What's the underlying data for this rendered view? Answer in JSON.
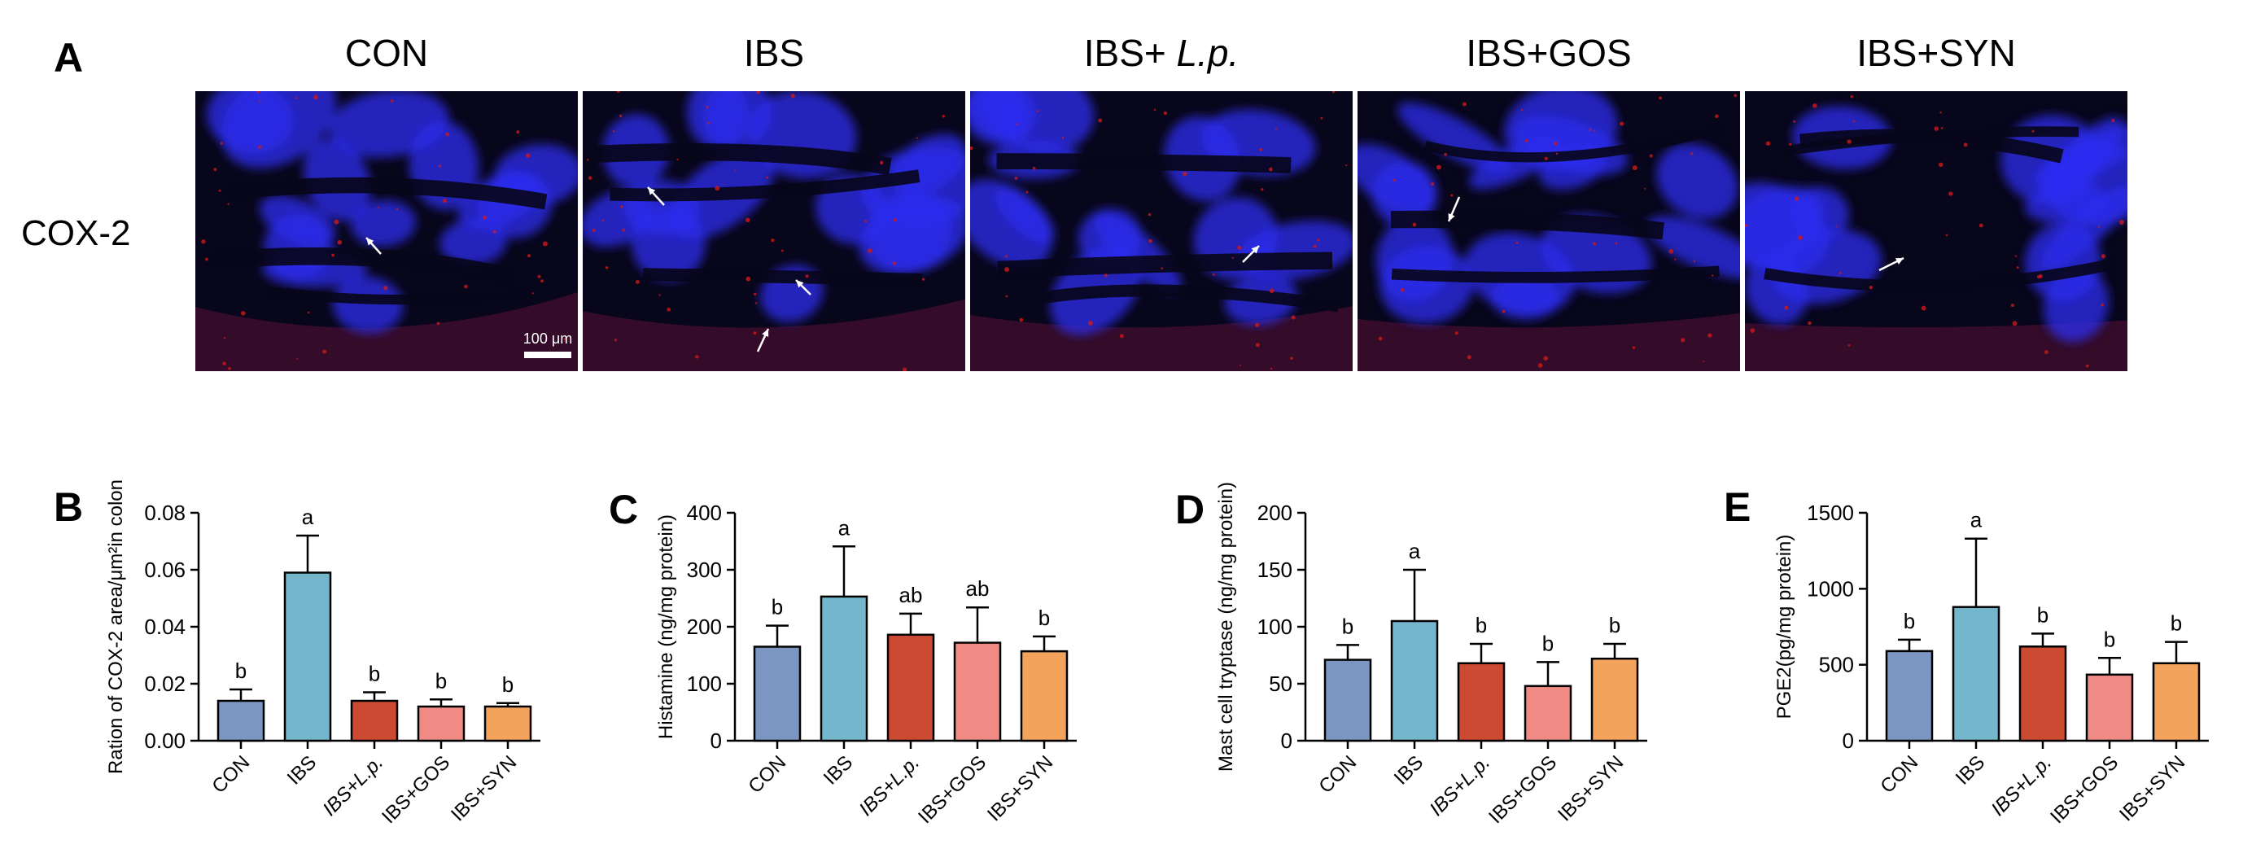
{
  "panel_a": {
    "letter": "A",
    "row_label": "COX-2",
    "groups": [
      {
        "header": "CON",
        "header_main": "CON",
        "header_italic": "",
        "arrows": 1,
        "scale_bar": "100 μm"
      },
      {
        "header": "IBS",
        "header_main": "IBS",
        "header_italic": "",
        "arrows": 3,
        "scale_bar": ""
      },
      {
        "header": "IBS+ L.p.",
        "header_main": "IBS+ ",
        "header_italic": "L.p.",
        "arrows": 1,
        "scale_bar": ""
      },
      {
        "header": "IBS+GOS",
        "header_main": "IBS+GOS",
        "header_italic": "",
        "arrows": 1,
        "scale_bar": ""
      },
      {
        "header": "IBS+SYN",
        "header_main": "IBS+SYN",
        "header_italic": "",
        "arrows": 1,
        "scale_bar": ""
      }
    ],
    "stain_colors": {
      "nuclei": "#2b2cf0",
      "cox2": "#d01818",
      "background": "#08061a"
    }
  },
  "chart_data": [
    {
      "panel": "B",
      "type": "bar",
      "categories": [
        "CON",
        "IBS",
        "IBS+L.p.",
        "IBS+GOS",
        "IBS+SYN"
      ],
      "category_italic": [
        false,
        false,
        true,
        false,
        false
      ],
      "values": [
        0.014,
        0.059,
        0.014,
        0.012,
        0.012
      ],
      "errors": [
        0.004,
        0.013,
        0.003,
        0.0025,
        0.0012
      ],
      "sig_letters": [
        "b",
        "a",
        "b",
        "b",
        "b"
      ],
      "ylabel": "Ration of COX-2 area/μm²in colon",
      "ylim": [
        0,
        0.08
      ],
      "yticks": [
        0,
        0.02,
        0.04,
        0.06,
        0.08
      ],
      "ytick_labels": [
        "0.00",
        "0.02",
        "0.04",
        "0.06",
        "0.08"
      ],
      "colors": [
        "#7b96c2",
        "#74b6cb",
        "#cc4a32",
        "#f08a84",
        "#f4a35c"
      ]
    },
    {
      "panel": "C",
      "type": "bar",
      "categories": [
        "CON",
        "IBS",
        "IBS+L.p.",
        "IBS+GOS",
        "IBS+SYN"
      ],
      "category_italic": [
        false,
        false,
        true,
        false,
        false
      ],
      "values": [
        165,
        253,
        186,
        172,
        157
      ],
      "errors": [
        37,
        88,
        37,
        62,
        26
      ],
      "sig_letters": [
        "b",
        "a",
        "ab",
        "ab",
        "b"
      ],
      "ylabel": "Histamine (ng/mg protein)",
      "ylim": [
        0,
        400
      ],
      "yticks": [
        0,
        100,
        200,
        300,
        400
      ],
      "ytick_labels": [
        "0",
        "100",
        "200",
        "300",
        "400"
      ],
      "colors": [
        "#7b96c2",
        "#74b6cb",
        "#cc4a32",
        "#f08a84",
        "#f4a35c"
      ]
    },
    {
      "panel": "D",
      "type": "bar",
      "categories": [
        "CON",
        "IBS",
        "IBS+L.p.",
        "IBS+GOS",
        "IBS+SYN"
      ],
      "category_italic": [
        false,
        false,
        true,
        false,
        false
      ],
      "values": [
        71,
        105,
        68,
        48,
        72
      ],
      "errors": [
        13,
        45,
        17,
        21,
        13
      ],
      "sig_letters": [
        "b",
        "a",
        "b",
        "b",
        "b"
      ],
      "ylabel": "Mast cell tryptase (ng/mg protein)",
      "ylim": [
        0,
        200
      ],
      "yticks": [
        0,
        50,
        100,
        150,
        200
      ],
      "ytick_labels": [
        "0",
        "50",
        "100",
        "150",
        "200"
      ],
      "colors": [
        "#7b96c2",
        "#74b6cb",
        "#cc4a32",
        "#f08a84",
        "#f4a35c"
      ]
    },
    {
      "panel": "E",
      "type": "bar",
      "categories": [
        "CON",
        "IBS",
        "IBS+L.p.",
        "IBS+GOS",
        "IBS+SYN"
      ],
      "category_italic": [
        false,
        false,
        true,
        false,
        false
      ],
      "values": [
        590,
        880,
        620,
        435,
        510
      ],
      "errors": [
        75,
        450,
        85,
        110,
        140
      ],
      "sig_letters": [
        "b",
        "a",
        "b",
        "b",
        "b"
      ],
      "ylabel": "PGE2(pg/mg protein)",
      "ylim": [
        0,
        1500
      ],
      "yticks": [
        0,
        500,
        1000,
        1500
      ],
      "ytick_labels": [
        "0",
        "500",
        "1000",
        "1500"
      ],
      "colors": [
        "#7b96c2",
        "#74b6cb",
        "#cc4a32",
        "#f08a84",
        "#f4a35c"
      ]
    }
  ]
}
